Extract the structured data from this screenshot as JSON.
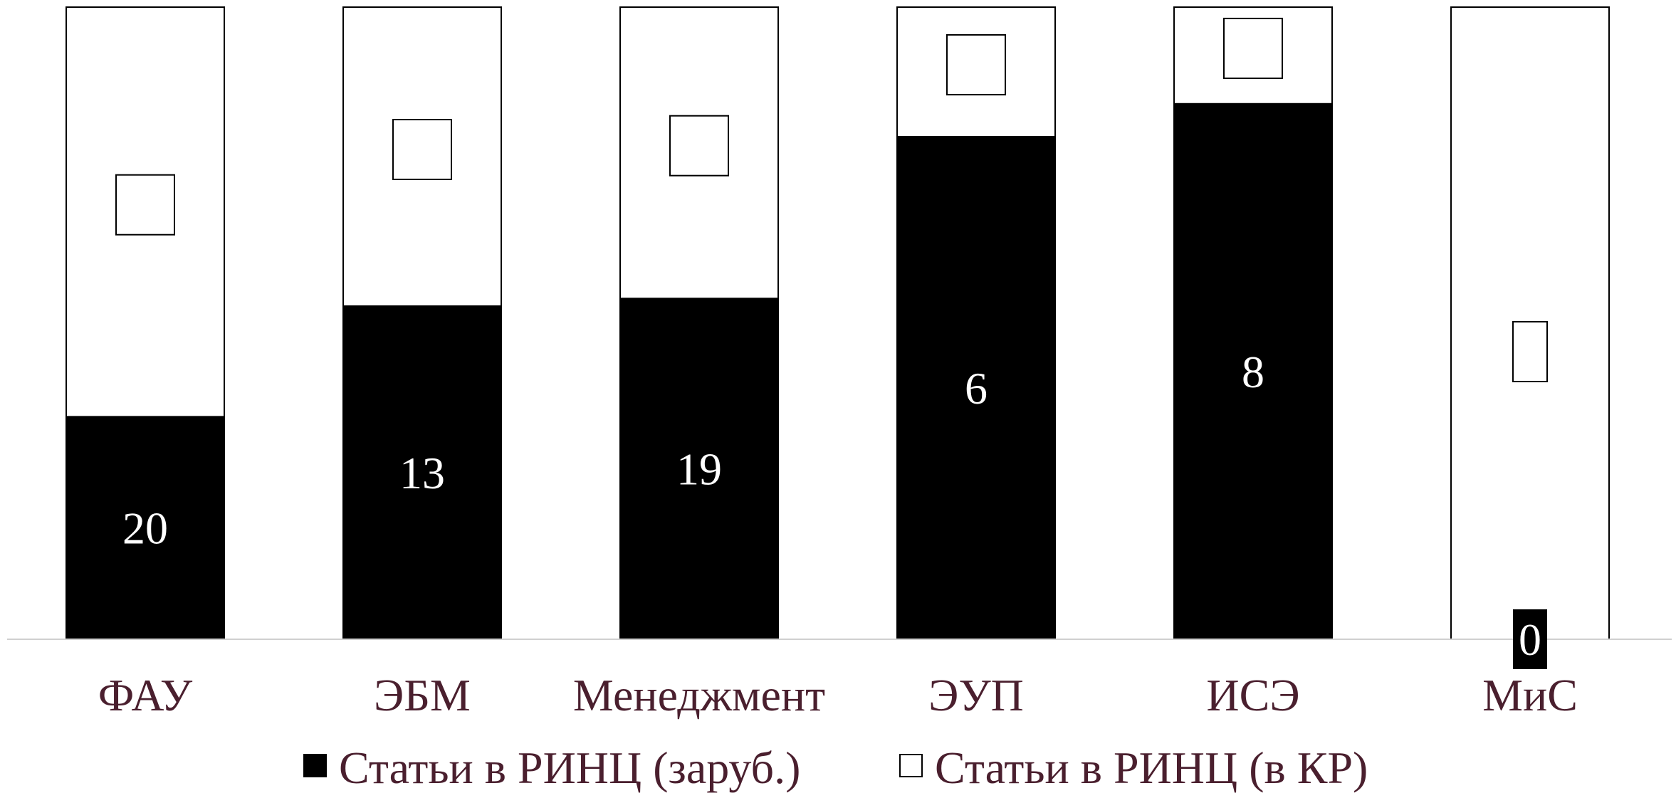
{
  "chart_data": {
    "type": "bar",
    "stacked": true,
    "normalized": true,
    "categories": [
      "ФАУ",
      "ЭБМ",
      "Менеджмент",
      "ЭУП",
      "ИСЭ",
      "МиС"
    ],
    "series": [
      {
        "name": "Статьи в РИНЦ (заруб.)",
        "color": "#000000",
        "values": [
          20,
          13,
          19,
          6,
          8,
          0
        ],
        "data_labels": [
          "20",
          "13",
          "19",
          "6",
          "8",
          "0"
        ]
      },
      {
        "name": "Статьи в РИНЦ (в КР)",
        "color": "#ffffff",
        "values": [
          0.648,
          0.473,
          0.461,
          0.205,
          0.153,
          0.0
        ],
        "value_unit": "share of stack (unlabeled)",
        "data_labels": [
          "",
          "",
          "",
          "",
          "",
          ""
        ]
      }
    ],
    "foreign_share": [
      0.352,
      0.527,
      0.539,
      0.795,
      0.847,
      0.0
    ],
    "ylim": [
      0,
      1
    ],
    "grid": false,
    "legend_position": "bottom",
    "title": "",
    "xlabel": "",
    "ylabel": ""
  }
}
